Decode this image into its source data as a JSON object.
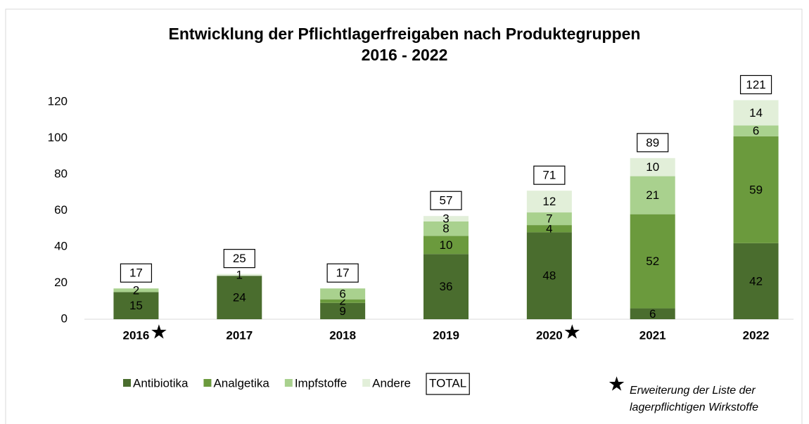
{
  "chart_data": {
    "type": "stacked_bar",
    "title": [
      "Entwicklung der Pflichtlagerfreigaben nach Produktegruppen",
      "2016 - 2022"
    ],
    "categories": [
      "2016",
      "2017",
      "2018",
      "2019",
      "2020",
      "2021",
      "2022"
    ],
    "series": [
      {
        "name": "Antibiotika",
        "color": "#4a6d2e",
        "values": [
          15,
          24,
          9,
          36,
          48,
          6,
          42
        ]
      },
      {
        "name": "Analgetika",
        "color": "#6b9a3d",
        "values": [
          null,
          null,
          2,
          10,
          4,
          52,
          59
        ]
      },
      {
        "name": "Impfstoffe",
        "color": "#a9d18e",
        "values": [
          2,
          null,
          6,
          8,
          7,
          21,
          6
        ]
      },
      {
        "name": "Andere",
        "color": "#e2efd9",
        "values": [
          null,
          1,
          null,
          3,
          12,
          10,
          14
        ]
      }
    ],
    "totals_name": "TOTAL",
    "totals": [
      17,
      25,
      17,
      57,
      71,
      89,
      121
    ],
    "marked": [
      true,
      false,
      false,
      false,
      true,
      false,
      false
    ],
    "footnote": {
      "symbol": "★",
      "lines": [
        "Erweiterung der Liste der",
        "lagerpflichtigen Wirkstoffe"
      ]
    },
    "ylim": [
      0,
      120
    ],
    "yticks": [
      0,
      20,
      40,
      60,
      80,
      100,
      120
    ],
    "grid": false
  }
}
